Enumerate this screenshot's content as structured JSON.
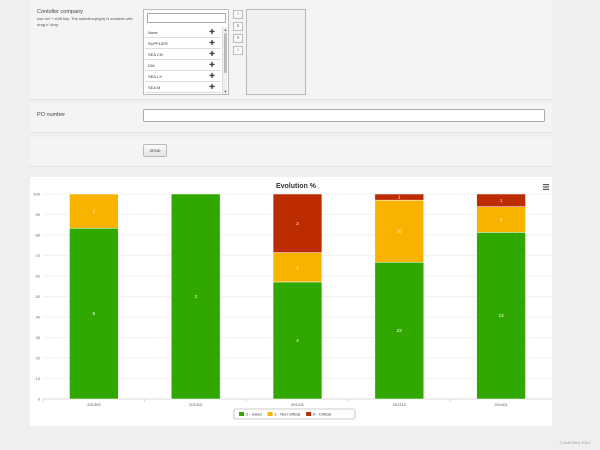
{
  "form": {
    "company": {
      "label": "Contoller company",
      "hint": "use ctrl + shift key. The selection(right) is sortable with drag n' drop",
      "search_value": "",
      "items": [
        {
          "label": "None"
        },
        {
          "label": "SUPPLIER"
        },
        {
          "label": "SEA CN"
        },
        {
          "label": "DIA"
        },
        {
          "label": "SEA LX"
        },
        {
          "label": "SEA M"
        }
      ],
      "buttons": {
        "move_right": "›",
        "move_all_right": "»",
        "move_all_left": "«",
        "move_left": "‹"
      },
      "item_icon": "plus-icon"
    },
    "po": {
      "label": "PO number",
      "value": ""
    },
    "send": {
      "label": "SEND"
    }
  },
  "chart_data": {
    "type": "bar",
    "stacked": true,
    "title": "Evolution %",
    "categories": [
      "201309",
      "201310",
      "201311",
      "201312",
      "201401"
    ],
    "series": [
      {
        "name": "2 - Good",
        "color": "#31a800",
        "values": [
          83.3,
          100,
          57.1,
          66.7,
          81.3
        ],
        "counts": [
          "5",
          "2",
          "4",
          "22",
          "13"
        ]
      },
      {
        "name": "1 - Non critical",
        "color": "#f7b300",
        "values": [
          16.7,
          0,
          14.3,
          30.3,
          12.5
        ],
        "counts": [
          "1",
          "",
          "1",
          "10",
          "2"
        ]
      },
      {
        "name": "0 - Critical",
        "color": "#bc2c00",
        "values": [
          0,
          0,
          28.6,
          3.0,
          6.2
        ],
        "counts": [
          "",
          "",
          "2",
          "1",
          "1"
        ]
      }
    ],
    "yticks": [
      "0",
      "10",
      "20",
      "30",
      "40",
      "50",
      "60",
      "70",
      "80",
      "90",
      "100"
    ],
    "ylim": [
      0,
      100
    ],
    "grid": true,
    "legend": "bottom-center",
    "menu_icon": "hamburger-menu-icon"
  },
  "footer": {
    "text": "© Axill Web 2014"
  }
}
